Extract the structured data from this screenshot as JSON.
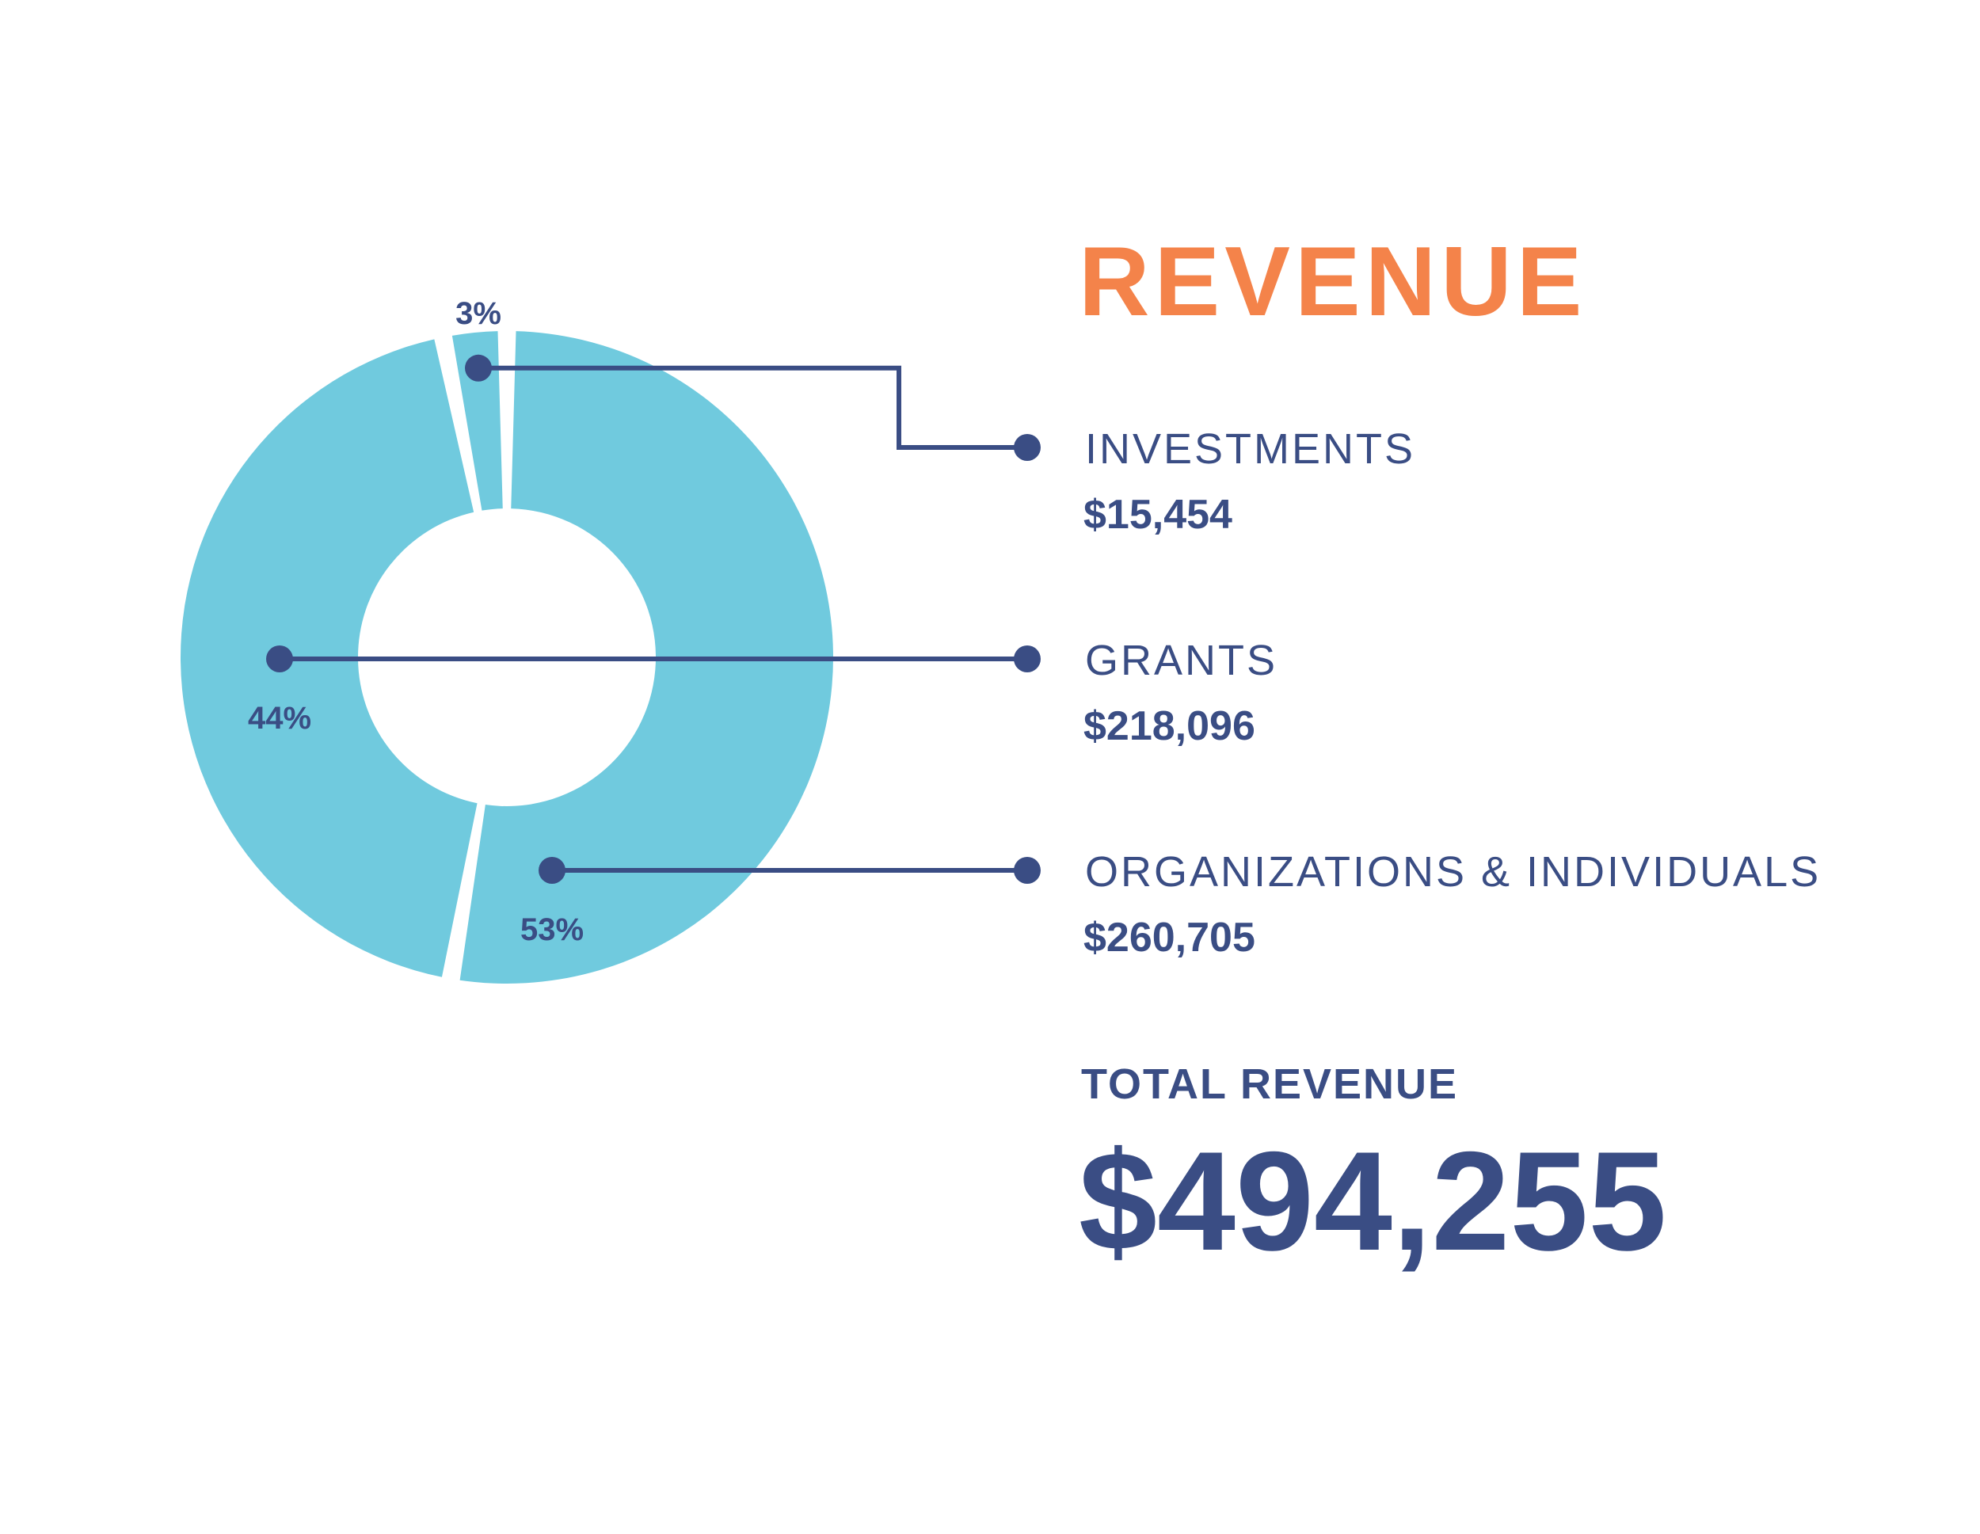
{
  "title": "REVENUE",
  "chart_data": {
    "type": "pie",
    "variant": "donut",
    "categories": [
      "INVESTMENTS",
      "GRANTS",
      "ORGANIZATIONS & INDIVIDUALS"
    ],
    "amounts": [
      "$15,454",
      "$218,096",
      "$260,705"
    ],
    "values": [
      15454,
      218096,
      260705
    ],
    "percent_labels": [
      "3%",
      "44%",
      "53%"
    ],
    "total_label": "TOTAL REVENUE",
    "total": "$494,255"
  },
  "colors": {
    "title": "#F4834A",
    "donut": "#70CADE",
    "accent": "#3A4D84",
    "background": "#FFFFFF"
  }
}
